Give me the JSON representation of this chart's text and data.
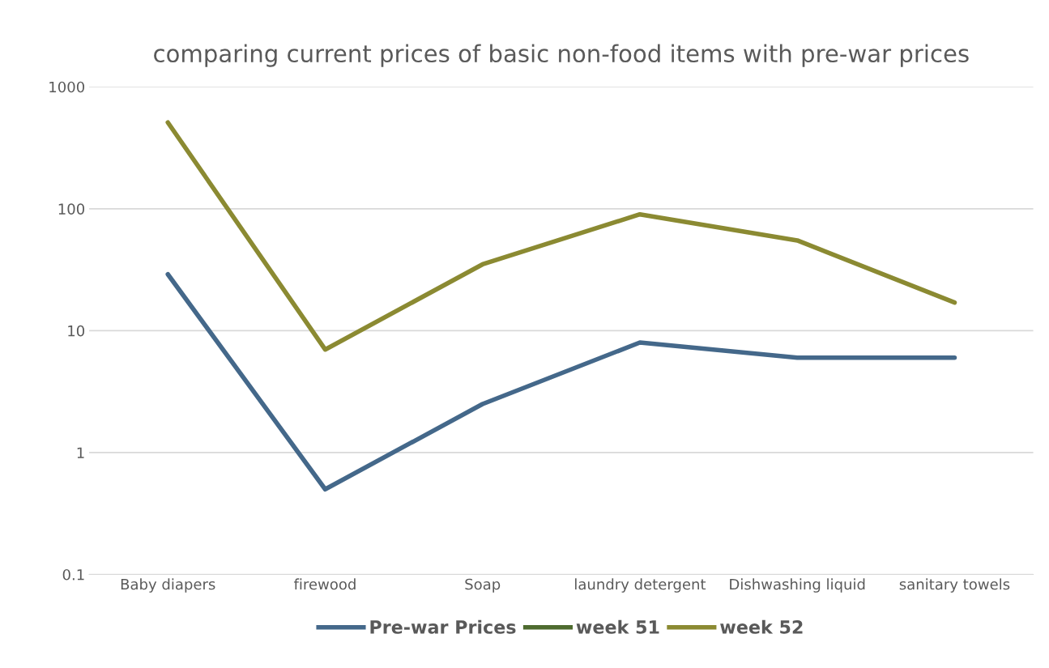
{
  "chart_data": {
    "type": "line",
    "title": "comparing current prices of basic non-food items with pre-war prices",
    "categories": [
      "Baby diapers",
      "firewood",
      "Soap",
      "laundry detergent",
      "Dishwashing liquid",
      "sanitary towels"
    ],
    "series": [
      {
        "name": "Pre-war Prices",
        "color": "#44688a",
        "values": [
          29,
          0.5,
          2.5,
          8,
          6,
          6
        ]
      },
      {
        "name": "week 51",
        "color": "#4e6b2f",
        "values": [
          null,
          null,
          null,
          null,
          null,
          null
        ]
      },
      {
        "name": "week 52",
        "color": "#8b8a32",
        "values": [
          510,
          7,
          35,
          90,
          55,
          17
        ]
      }
    ],
    "log": "y",
    "ylim": [
      0.1,
      1000
    ],
    "yticks": [
      0.1,
      1,
      10,
      100,
      1000
    ],
    "grid": "y",
    "legend": "bottom",
    "marker": "none",
    "line_style": "solid"
  }
}
